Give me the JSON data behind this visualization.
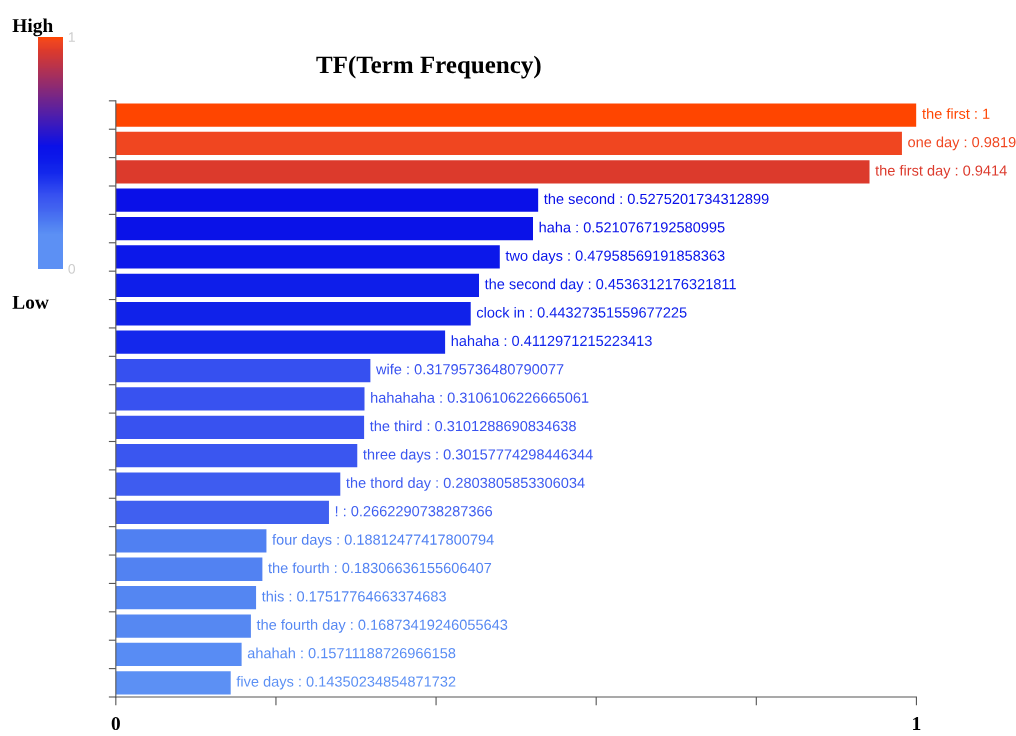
{
  "chart_data": {
    "type": "bar",
    "orientation": "horizontal",
    "title": "TF(Term Frequency)",
    "categories": [
      null,
      null,
      null,
      null,
      null,
      null,
      null,
      null,
      null,
      null,
      null,
      null,
      null,
      null,
      null,
      null,
      null,
      null,
      null,
      null,
      null
    ],
    "values": [
      1,
      0.9819,
      0.9414,
      0.5275201734312899,
      0.5210767192580995,
      0.47958569191858363,
      0.4536312176321811,
      0.44327351559677225,
      0.4112971215223413,
      0.31795736480790077,
      0.3106106226665061,
      0.3101288690834638,
      0.30157774298446344,
      0.2803805853306034,
      0.2662290738287366,
      0.18812477417800794,
      0.18306636155606407,
      0.17517764663374683,
      0.16873419246055643,
      0.15711188726966158,
      0.14350234854871732
    ],
    "value_labels": [
      "the first : 1",
      "one day : 0.9819",
      "the first day : 0.9414",
      "the second : 0.5275201734312899",
      "haha : 0.5210767192580995",
      "two days : 0.47958569191858363",
      "the second day : 0.4536312176321811",
      "clock in : 0.44327351559677225",
      "hahaha : 0.4112971215223413",
      "wife : 0.31795736480790077",
      "hahahaha : 0.3106106226665061",
      "the third : 0.3101288690834638",
      "three days : 0.30157774298446344",
      "the thord day : 0.2803805853306034",
      "! : 0.2662290738287366",
      "four days : 0.18812477417800794",
      "the fourth : 0.18306636155606407",
      "this : 0.17517764663374683",
      "the fourth day : 0.16873419246055643",
      "ahahah : 0.15711188726966158",
      "five days : 0.14350234854871732"
    ],
    "colors": [
      "#ff4500",
      "#f04620",
      "#dc3a2c",
      "#0a10e8",
      "#0a12e8",
      "#0c18ea",
      "#0e1eea",
      "#1022ea",
      "#1428ec",
      "#3650f0",
      "#3852f0",
      "#3852f0",
      "#3a56f0",
      "#3e5cf0",
      "#4060f0",
      "#5080f2",
      "#5282f2",
      "#5486f2",
      "#5688f2",
      "#588cf4",
      "#5c90f4"
    ],
    "xlim": [
      0,
      1
    ],
    "xticks": [
      0,
      {
        "value": 0.2,
        "label": null
      },
      {
        "value": 0.4,
        "label": null
      },
      {
        "value": 0.6,
        "label": null
      },
      {
        "value": 0.8,
        "label": null
      },
      1
    ],
    "clim": [
      0,
      1
    ],
    "cticks": [
      0,
      1
    ],
    "annotations": [
      "High",
      "Low"
    ],
    "tick_labels": "x",
    "grid": false,
    "legend": false
  }
}
